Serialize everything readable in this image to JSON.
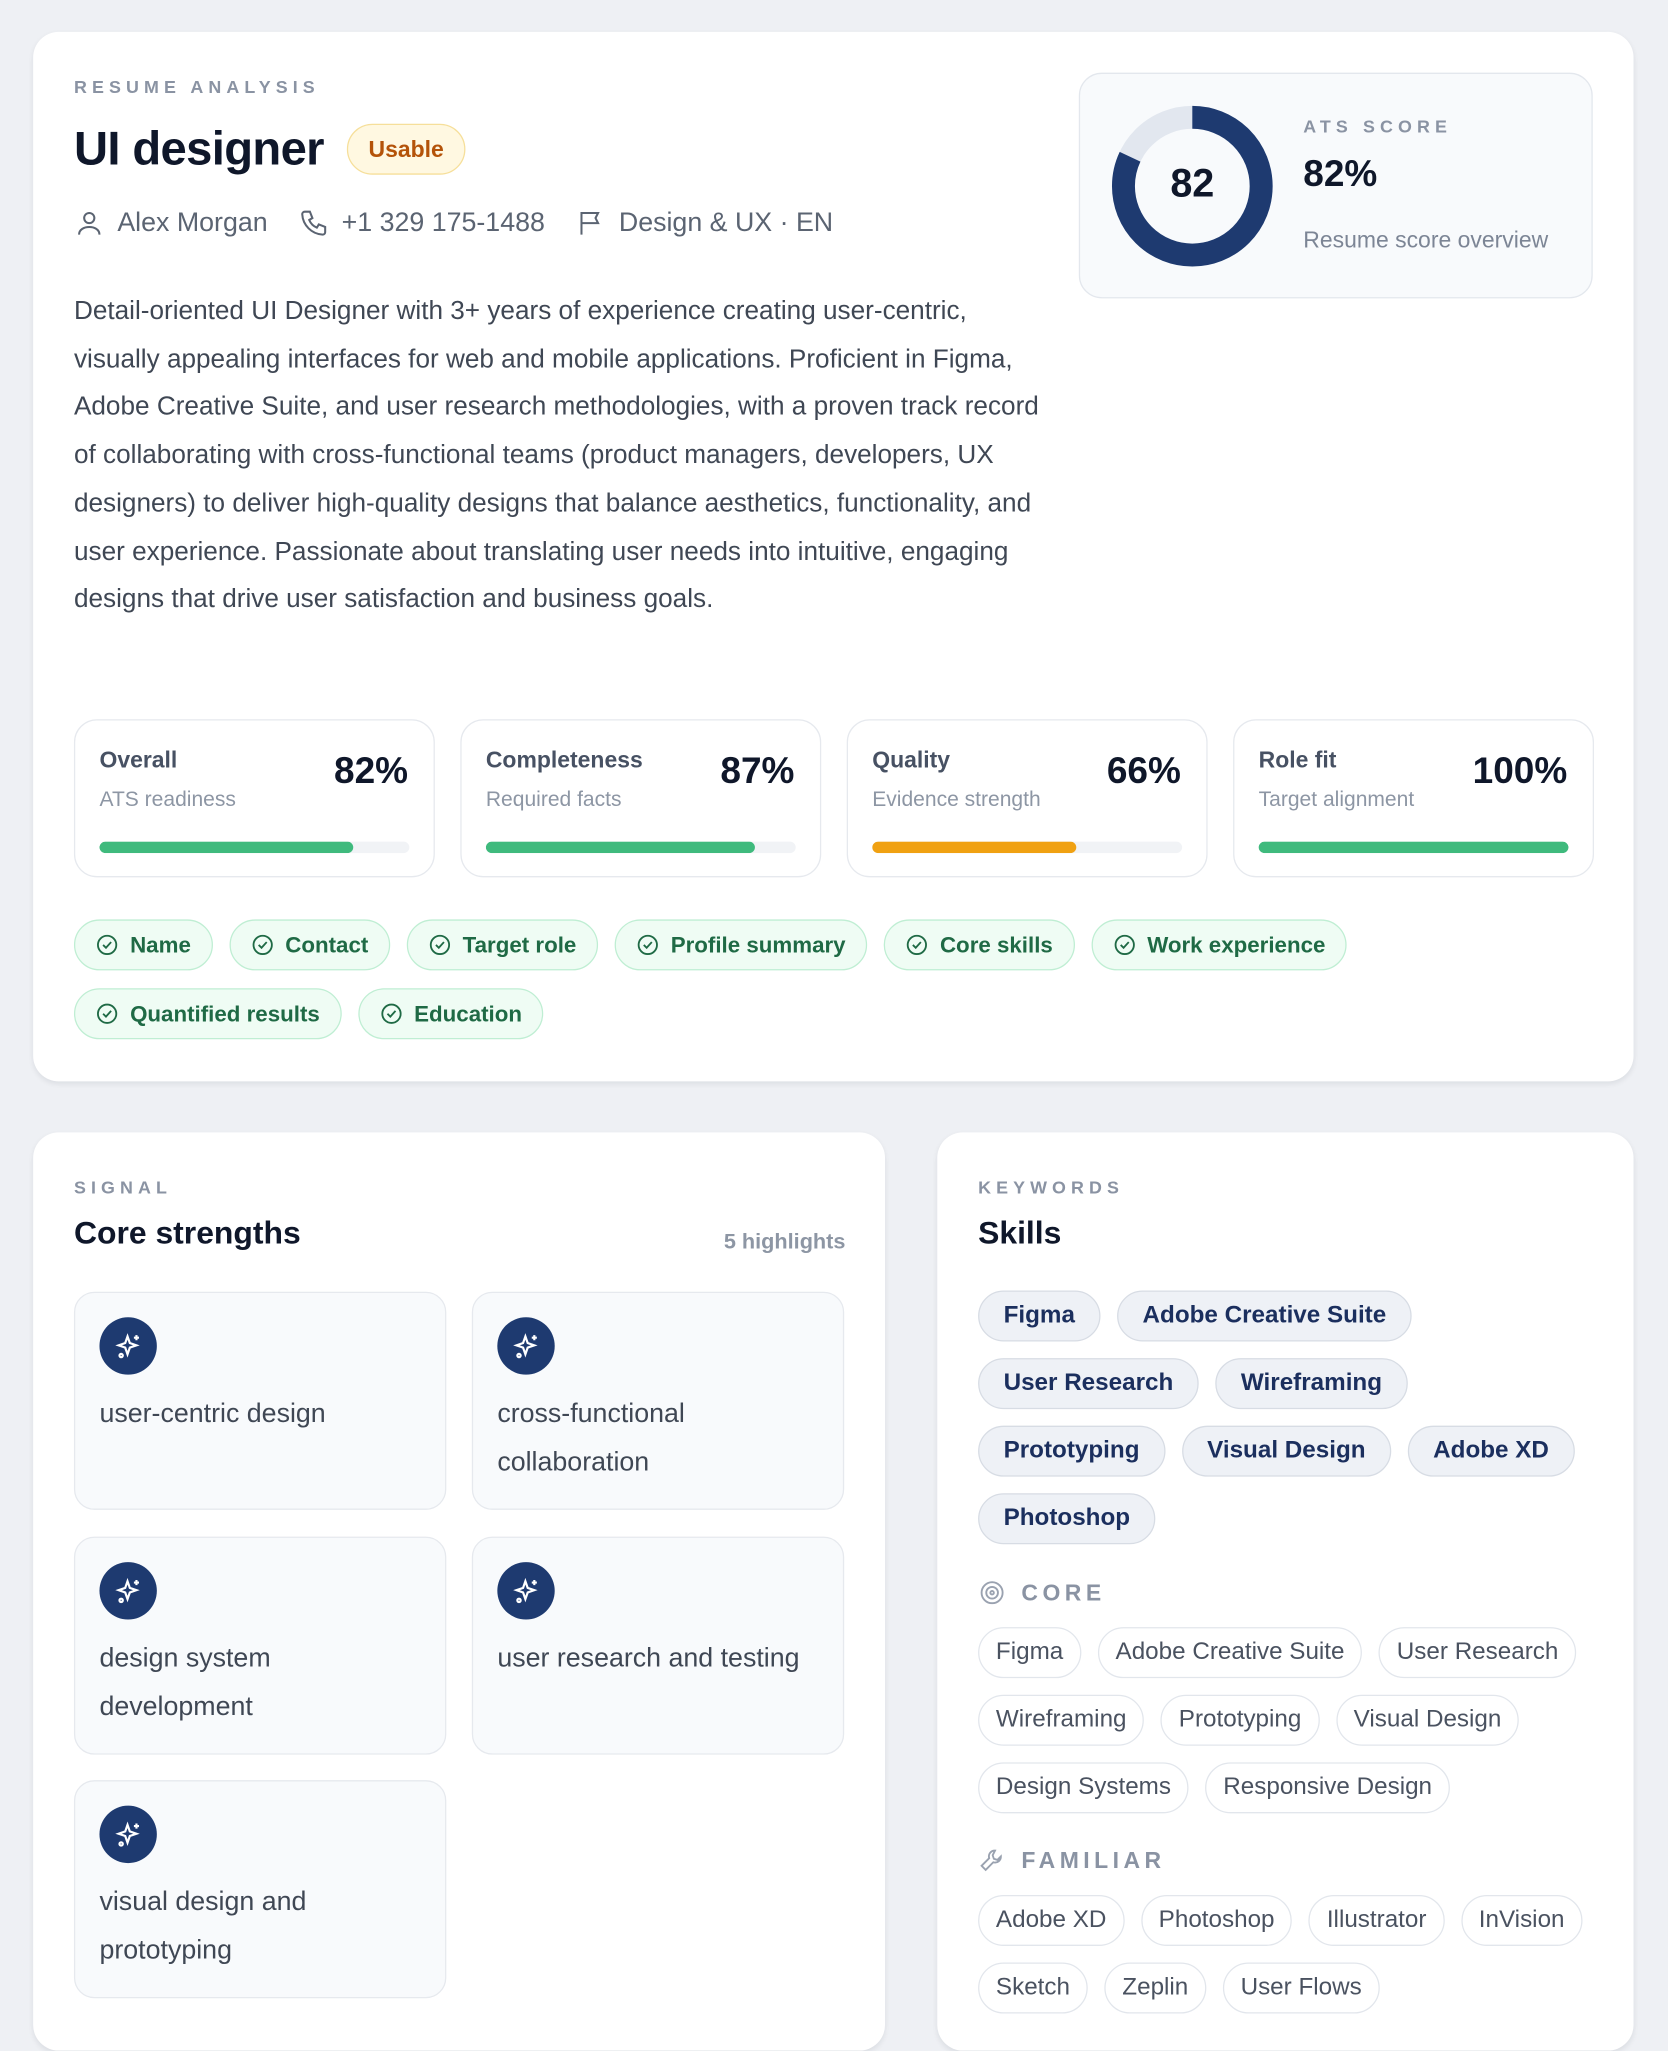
{
  "header": {
    "eyebrow": "RESUME ANALYSIS",
    "title": "UI designer",
    "badge": "Usable",
    "name": "Alex Morgan",
    "phone": "+1 329 175-1488",
    "category": "Design & UX · EN"
  },
  "summary": "Detail-oriented UI Designer with 3+ years of experience creating user-centric, visually appealing interfaces for web and mobile applications. Proficient in Figma, Adobe Creative Suite, and user research methodologies, with a proven track record of collaborating with cross-functional teams (product managers, developers, UX designers) to deliver high-quality designs that balance aesthetics, functionality, and user experience. Passionate about translating user needs into intuitive, engaging designs that drive user satisfaction and business goals.",
  "ats": {
    "label": "ATS SCORE",
    "score": "82",
    "percent": "82%",
    "caption": "Resume score overview",
    "value": 82,
    "color": "#1e3a70",
    "track": "#e2e7ef"
  },
  "metrics": [
    {
      "title": "Overall",
      "subtitle": "ATS readiness",
      "value": "82%",
      "fill": 82,
      "color": "#3fba7d"
    },
    {
      "title": "Completeness",
      "subtitle": "Required facts",
      "value": "87%",
      "fill": 87,
      "color": "#3fba7d"
    },
    {
      "title": "Quality",
      "subtitle": "Evidence strength",
      "value": "66%",
      "fill": 66,
      "color": "#f0a112"
    },
    {
      "title": "Role fit",
      "subtitle": "Target alignment",
      "value": "100%",
      "fill": 100,
      "color": "#3fba7d"
    }
  ],
  "checks": [
    "Name",
    "Contact",
    "Target role",
    "Profile summary",
    "Core skills",
    "Work experience",
    "Quantified results",
    "Education"
  ],
  "strengths": {
    "eyebrow": "SIGNAL",
    "title": "Core strengths",
    "count": "5 highlights",
    "items": [
      "user-centric design",
      "cross-functional collaboration",
      "design system development",
      "user research and testing",
      "visual design and prototyping"
    ]
  },
  "skills": {
    "eyebrow": "KEYWORDS",
    "title": "Skills",
    "keywords": [
      "Figma",
      "Adobe Creative Suite",
      "User Research",
      "Wireframing",
      "Prototyping",
      "Visual Design",
      "Adobe XD",
      "Photoshop"
    ],
    "core_label": "CORE",
    "core": [
      "Figma",
      "Adobe Creative Suite",
      "User Research",
      "Wireframing",
      "Prototyping",
      "Visual Design",
      "Design Systems",
      "Responsive Design"
    ],
    "familiar_label": "FAMILIAR",
    "familiar": [
      "Adobe XD",
      "Photoshop",
      "Illustrator",
      "InVision",
      "Sketch",
      "Zeplin",
      "User Flows"
    ]
  }
}
